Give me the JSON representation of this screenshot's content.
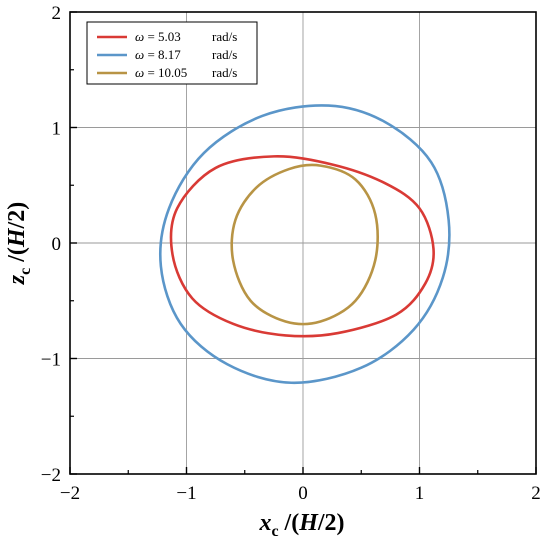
{
  "chart_data": {
    "type": "line",
    "xlim": [
      -2,
      2
    ],
    "ylim": [
      -2,
      2
    ],
    "xticks": [
      -2,
      -1,
      0,
      1,
      2
    ],
    "yticks": [
      -2,
      -1,
      0,
      1,
      2
    ],
    "tick_labels_x": [
      "−2",
      "−1",
      "0",
      "1",
      "2"
    ],
    "tick_labels_y": [
      "−2",
      "−1",
      "0",
      "1",
      "2"
    ],
    "grid": true,
    "legend_position": "top-left",
    "xlabel": {
      "var": "x",
      "sub": "c",
      "rest": " /(",
      "h": "H",
      "tail": "/2)"
    },
    "ylabel": {
      "var": "z",
      "sub": "c",
      "rest": " /(",
      "h": "H",
      "tail": "/2)"
    },
    "series": [
      {
        "legend_symbol": "ω",
        "legend_value": " = 5.03",
        "legend_unit": "rad/s",
        "color": "#d93a35",
        "points": [
          [
            -0.25,
            0.75
          ],
          [
            0.25,
            0.68
          ],
          [
            0.7,
            0.52
          ],
          [
            1.0,
            0.3
          ],
          [
            1.12,
            -0.05
          ],
          [
            1.05,
            -0.35
          ],
          [
            0.8,
            -0.62
          ],
          [
            0.3,
            -0.78
          ],
          [
            -0.15,
            -0.8
          ],
          [
            -0.6,
            -0.7
          ],
          [
            -0.95,
            -0.48
          ],
          [
            -1.12,
            -0.1
          ],
          [
            -1.08,
            0.3
          ],
          [
            -0.75,
            0.65
          ]
        ]
      },
      {
        "legend_symbol": "ω",
        "legend_value": " = 8.17",
        "legend_unit": "rad/s",
        "color": "#5b96c9",
        "points": [
          [
            0.22,
            1.19
          ],
          [
            0.7,
            1.05
          ],
          [
            1.1,
            0.7
          ],
          [
            1.25,
            0.2
          ],
          [
            1.2,
            -0.3
          ],
          [
            0.95,
            -0.75
          ],
          [
            0.5,
            -1.08
          ],
          [
            -0.1,
            -1.21
          ],
          [
            -0.65,
            -1.05
          ],
          [
            -1.05,
            -0.7
          ],
          [
            -1.22,
            -0.2
          ],
          [
            -1.15,
            0.3
          ],
          [
            -0.85,
            0.78
          ],
          [
            -0.35,
            1.1
          ]
        ]
      },
      {
        "legend_symbol": "ω",
        "legend_value": " = 10.05",
        "legend_unit": "rad/s",
        "color": "#b89445",
        "points": [
          [
            0.15,
            0.67
          ],
          [
            0.45,
            0.55
          ],
          [
            0.62,
            0.25
          ],
          [
            0.62,
            -0.15
          ],
          [
            0.45,
            -0.5
          ],
          [
            0.15,
            -0.68
          ],
          [
            -0.15,
            -0.68
          ],
          [
            -0.45,
            -0.5
          ],
          [
            -0.6,
            -0.15
          ],
          [
            -0.58,
            0.2
          ],
          [
            -0.4,
            0.48
          ],
          [
            -0.12,
            0.64
          ]
        ]
      }
    ]
  }
}
